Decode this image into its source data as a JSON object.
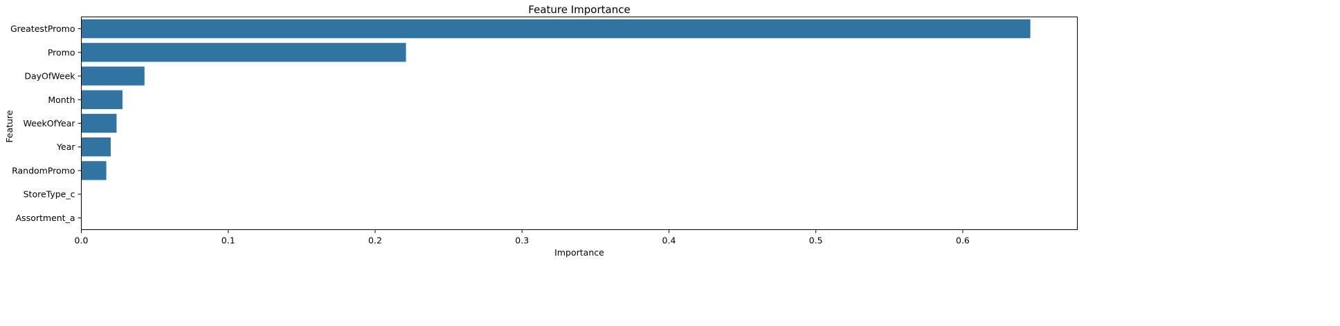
{
  "chart_data": {
    "type": "bar",
    "orientation": "horizontal",
    "title": "Feature Importance",
    "xlabel": "Importance",
    "ylabel": "Feature",
    "categories": [
      "GreatestPromo",
      "Promo",
      "DayOfWeek",
      "Month",
      "WeekOfYear",
      "Year",
      "RandomPromo",
      "StoreType_c",
      "Assortment_a"
    ],
    "values": [
      0.646,
      0.221,
      0.043,
      0.028,
      0.024,
      0.02,
      0.017,
      0.0,
      0.0
    ],
    "xlim": [
      0,
      0.678
    ],
    "xticks": [
      0.0,
      0.1,
      0.2,
      0.3,
      0.4,
      0.5,
      0.6
    ],
    "xtick_labels": [
      "0.0",
      "0.1",
      "0.2",
      "0.3",
      "0.4",
      "0.5",
      "0.6"
    ],
    "grid": false,
    "legend": "none",
    "colors": {
      "bar": "#3274a1",
      "axis": "#000000"
    }
  }
}
